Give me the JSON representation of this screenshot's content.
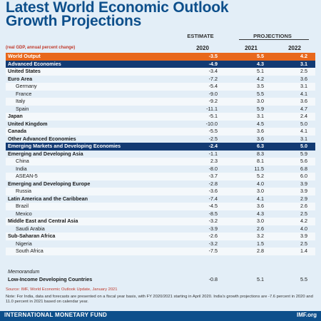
{
  "title_line1": "Latest World Economic Outlook",
  "title_line2": "Growth Projections",
  "header": {
    "estimate": "ESTIMATE",
    "projections": "PROJECTIONS",
    "subheader": "(real GDP, annual percent change)",
    "years": [
      "2020",
      "2021",
      "2022"
    ]
  },
  "rows": [
    {
      "name": "World Output",
      "v": [
        "-3.5",
        "5.5",
        "4.2"
      ],
      "style": "hl-orange",
      "level": "grp"
    },
    {
      "name": "Advanced Economies",
      "v": [
        "-4.9",
        "4.3",
        "3.1"
      ],
      "style": "hl-navy",
      "level": "grp"
    },
    {
      "name": "United States",
      "v": [
        "-3.4",
        "5.1",
        "2.5"
      ],
      "style": "",
      "level": "grp"
    },
    {
      "name": "Euro Area",
      "v": [
        "-7.2",
        "4.2",
        "3.6"
      ],
      "style": "",
      "level": "grp"
    },
    {
      "name": "Germany",
      "v": [
        "-5.4",
        "3.5",
        "3.1"
      ],
      "style": "",
      "level": "sub"
    },
    {
      "name": "France",
      "v": [
        "-9.0",
        "5.5",
        "4.1"
      ],
      "style": "",
      "level": "sub"
    },
    {
      "name": "Italy",
      "v": [
        "-9.2",
        "3.0",
        "3.6"
      ],
      "style": "",
      "level": "sub"
    },
    {
      "name": "Spain",
      "v": [
        "-11.1",
        "5.9",
        "4.7"
      ],
      "style": "",
      "level": "sub"
    },
    {
      "name": "Japan",
      "v": [
        "-5.1",
        "3.1",
        "2.4"
      ],
      "style": "",
      "level": "grp"
    },
    {
      "name": "United Kingdom",
      "v": [
        "-10.0",
        "4.5",
        "5.0"
      ],
      "style": "",
      "level": "grp"
    },
    {
      "name": "Canada",
      "v": [
        "-5.5",
        "3.6",
        "4.1"
      ],
      "style": "",
      "level": "grp"
    },
    {
      "name": "Other Advanced Economies",
      "v": [
        "-2.5",
        "3.6",
        "3.1"
      ],
      "style": "",
      "level": "grp"
    },
    {
      "name": "Emerging Markets and Developing Economies",
      "v": [
        "-2.4",
        "6.3",
        "5.0"
      ],
      "style": "hl-navy",
      "level": "grp"
    },
    {
      "name": "Emerging and Developing Asia",
      "v": [
        "-1.1",
        "8.3",
        "5.9"
      ],
      "style": "",
      "level": "grp"
    },
    {
      "name": "China",
      "v": [
        "2.3",
        "8.1",
        "5.6"
      ],
      "style": "",
      "level": "sub"
    },
    {
      "name": "India",
      "v": [
        "-8.0",
        "11.5",
        "6.8"
      ],
      "style": "",
      "level": "sub"
    },
    {
      "name": "ASEAN-5",
      "v": [
        "-3.7",
        "5.2",
        "6.0"
      ],
      "style": "",
      "level": "sub"
    },
    {
      "name": "Emerging and Developing Europe",
      "v": [
        "-2.8",
        "4.0",
        "3.9"
      ],
      "style": "",
      "level": "grp"
    },
    {
      "name": "Russia",
      "v": [
        "-3.6",
        "3.0",
        "3.9"
      ],
      "style": "",
      "level": "sub"
    },
    {
      "name": "Latin America and the Caribbean",
      "v": [
        "-7.4",
        "4.1",
        "2.9"
      ],
      "style": "",
      "level": "grp"
    },
    {
      "name": "Brazil",
      "v": [
        "-4.5",
        "3.6",
        "2.6"
      ],
      "style": "",
      "level": "sub"
    },
    {
      "name": "Mexico",
      "v": [
        "-8.5",
        "4.3",
        "2.5"
      ],
      "style": "",
      "level": "sub"
    },
    {
      "name": "Middle East and Central Asia",
      "v": [
        "-3.2",
        "3.0",
        "4.2"
      ],
      "style": "",
      "level": "grp"
    },
    {
      "name": "Saudi Arabia",
      "v": [
        "-3.9",
        "2.6",
        "4.0"
      ],
      "style": "",
      "level": "sub"
    },
    {
      "name": "Sub-Saharan Africa",
      "v": [
        "-2.6",
        "3.2",
        "3.9"
      ],
      "style": "",
      "level": "grp"
    },
    {
      "name": "Nigeria",
      "v": [
        "-3.2",
        "1.5",
        "2.5"
      ],
      "style": "",
      "level": "sub"
    },
    {
      "name": "South Africa",
      "v": [
        "-7.5",
        "2.8",
        "1.4"
      ],
      "style": "",
      "level": "sub"
    }
  ],
  "memo": {
    "label": "Memorandum",
    "name": "Low-Income Developing Countries",
    "v": [
      "-0.8",
      "5.1",
      "5.5"
    ]
  },
  "source": "Source: IMF, World Economic Outlook Update, January 2021",
  "note": "Note: For India, data and forecasts are presented on a fiscal year basis, with FY 2020/2021 starting in April 2020. India's growth projections are -7.6 percent in 2020 and 11.0 percent in 2021 based on calendar year.",
  "footer": {
    "left": "INTERNATIONAL MONETARY FUND",
    "right": "IMF.org"
  }
}
